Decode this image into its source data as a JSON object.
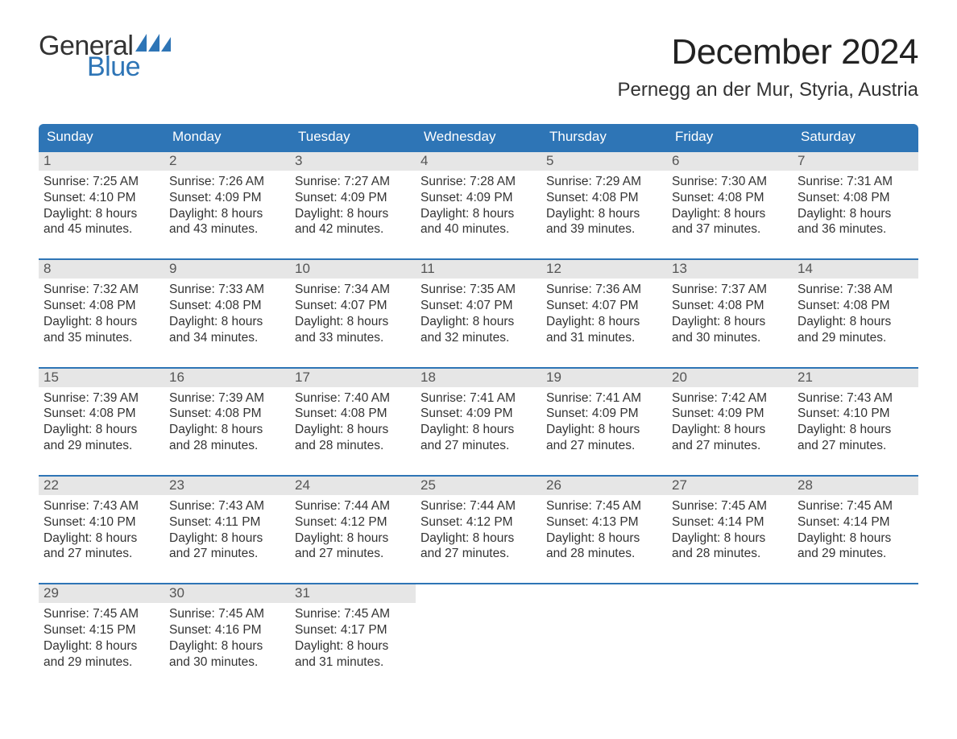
{
  "brand": {
    "word1": "General",
    "word2": "Blue",
    "word1_color": "#333333",
    "word2_color": "#2e75b6",
    "flag_color": "#2e75b6"
  },
  "header": {
    "month_title": "December 2024",
    "location": "Pernegg an der Mur, Styria, Austria"
  },
  "style": {
    "header_bg": "#2e75b6",
    "header_fg": "#ffffff",
    "daynum_bg": "#e6e6e6",
    "daynum_fg": "#555555",
    "body_fg": "#333333",
    "week_border": "#2e75b6",
    "page_bg": "#ffffff",
    "dow_fontsize": 17,
    "body_fontsize": 15.5,
    "title_fontsize": 44,
    "location_fontsize": 24
  },
  "calendar": {
    "days_of_week": [
      "Sunday",
      "Monday",
      "Tuesday",
      "Wednesday",
      "Thursday",
      "Friday",
      "Saturday"
    ],
    "weeks": [
      [
        {
          "day": "1",
          "sunrise": "Sunrise: 7:25 AM",
          "sunset": "Sunset: 4:10 PM",
          "daylight1": "Daylight: 8 hours",
          "daylight2": "and 45 minutes."
        },
        {
          "day": "2",
          "sunrise": "Sunrise: 7:26 AM",
          "sunset": "Sunset: 4:09 PM",
          "daylight1": "Daylight: 8 hours",
          "daylight2": "and 43 minutes."
        },
        {
          "day": "3",
          "sunrise": "Sunrise: 7:27 AM",
          "sunset": "Sunset: 4:09 PM",
          "daylight1": "Daylight: 8 hours",
          "daylight2": "and 42 minutes."
        },
        {
          "day": "4",
          "sunrise": "Sunrise: 7:28 AM",
          "sunset": "Sunset: 4:09 PM",
          "daylight1": "Daylight: 8 hours",
          "daylight2": "and 40 minutes."
        },
        {
          "day": "5",
          "sunrise": "Sunrise: 7:29 AM",
          "sunset": "Sunset: 4:08 PM",
          "daylight1": "Daylight: 8 hours",
          "daylight2": "and 39 minutes."
        },
        {
          "day": "6",
          "sunrise": "Sunrise: 7:30 AM",
          "sunset": "Sunset: 4:08 PM",
          "daylight1": "Daylight: 8 hours",
          "daylight2": "and 37 minutes."
        },
        {
          "day": "7",
          "sunrise": "Sunrise: 7:31 AM",
          "sunset": "Sunset: 4:08 PM",
          "daylight1": "Daylight: 8 hours",
          "daylight2": "and 36 minutes."
        }
      ],
      [
        {
          "day": "8",
          "sunrise": "Sunrise: 7:32 AM",
          "sunset": "Sunset: 4:08 PM",
          "daylight1": "Daylight: 8 hours",
          "daylight2": "and 35 minutes."
        },
        {
          "day": "9",
          "sunrise": "Sunrise: 7:33 AM",
          "sunset": "Sunset: 4:08 PM",
          "daylight1": "Daylight: 8 hours",
          "daylight2": "and 34 minutes."
        },
        {
          "day": "10",
          "sunrise": "Sunrise: 7:34 AM",
          "sunset": "Sunset: 4:07 PM",
          "daylight1": "Daylight: 8 hours",
          "daylight2": "and 33 minutes."
        },
        {
          "day": "11",
          "sunrise": "Sunrise: 7:35 AM",
          "sunset": "Sunset: 4:07 PM",
          "daylight1": "Daylight: 8 hours",
          "daylight2": "and 32 minutes."
        },
        {
          "day": "12",
          "sunrise": "Sunrise: 7:36 AM",
          "sunset": "Sunset: 4:07 PM",
          "daylight1": "Daylight: 8 hours",
          "daylight2": "and 31 minutes."
        },
        {
          "day": "13",
          "sunrise": "Sunrise: 7:37 AM",
          "sunset": "Sunset: 4:08 PM",
          "daylight1": "Daylight: 8 hours",
          "daylight2": "and 30 minutes."
        },
        {
          "day": "14",
          "sunrise": "Sunrise: 7:38 AM",
          "sunset": "Sunset: 4:08 PM",
          "daylight1": "Daylight: 8 hours",
          "daylight2": "and 29 minutes."
        }
      ],
      [
        {
          "day": "15",
          "sunrise": "Sunrise: 7:39 AM",
          "sunset": "Sunset: 4:08 PM",
          "daylight1": "Daylight: 8 hours",
          "daylight2": "and 29 minutes."
        },
        {
          "day": "16",
          "sunrise": "Sunrise: 7:39 AM",
          "sunset": "Sunset: 4:08 PM",
          "daylight1": "Daylight: 8 hours",
          "daylight2": "and 28 minutes."
        },
        {
          "day": "17",
          "sunrise": "Sunrise: 7:40 AM",
          "sunset": "Sunset: 4:08 PM",
          "daylight1": "Daylight: 8 hours",
          "daylight2": "and 28 minutes."
        },
        {
          "day": "18",
          "sunrise": "Sunrise: 7:41 AM",
          "sunset": "Sunset: 4:09 PM",
          "daylight1": "Daylight: 8 hours",
          "daylight2": "and 27 minutes."
        },
        {
          "day": "19",
          "sunrise": "Sunrise: 7:41 AM",
          "sunset": "Sunset: 4:09 PM",
          "daylight1": "Daylight: 8 hours",
          "daylight2": "and 27 minutes."
        },
        {
          "day": "20",
          "sunrise": "Sunrise: 7:42 AM",
          "sunset": "Sunset: 4:09 PM",
          "daylight1": "Daylight: 8 hours",
          "daylight2": "and 27 minutes."
        },
        {
          "day": "21",
          "sunrise": "Sunrise: 7:43 AM",
          "sunset": "Sunset: 4:10 PM",
          "daylight1": "Daylight: 8 hours",
          "daylight2": "and 27 minutes."
        }
      ],
      [
        {
          "day": "22",
          "sunrise": "Sunrise: 7:43 AM",
          "sunset": "Sunset: 4:10 PM",
          "daylight1": "Daylight: 8 hours",
          "daylight2": "and 27 minutes."
        },
        {
          "day": "23",
          "sunrise": "Sunrise: 7:43 AM",
          "sunset": "Sunset: 4:11 PM",
          "daylight1": "Daylight: 8 hours",
          "daylight2": "and 27 minutes."
        },
        {
          "day": "24",
          "sunrise": "Sunrise: 7:44 AM",
          "sunset": "Sunset: 4:12 PM",
          "daylight1": "Daylight: 8 hours",
          "daylight2": "and 27 minutes."
        },
        {
          "day": "25",
          "sunrise": "Sunrise: 7:44 AM",
          "sunset": "Sunset: 4:12 PM",
          "daylight1": "Daylight: 8 hours",
          "daylight2": "and 27 minutes."
        },
        {
          "day": "26",
          "sunrise": "Sunrise: 7:45 AM",
          "sunset": "Sunset: 4:13 PM",
          "daylight1": "Daylight: 8 hours",
          "daylight2": "and 28 minutes."
        },
        {
          "day": "27",
          "sunrise": "Sunrise: 7:45 AM",
          "sunset": "Sunset: 4:14 PM",
          "daylight1": "Daylight: 8 hours",
          "daylight2": "and 28 minutes."
        },
        {
          "day": "28",
          "sunrise": "Sunrise: 7:45 AM",
          "sunset": "Sunset: 4:14 PM",
          "daylight1": "Daylight: 8 hours",
          "daylight2": "and 29 minutes."
        }
      ],
      [
        {
          "day": "29",
          "sunrise": "Sunrise: 7:45 AM",
          "sunset": "Sunset: 4:15 PM",
          "daylight1": "Daylight: 8 hours",
          "daylight2": "and 29 minutes."
        },
        {
          "day": "30",
          "sunrise": "Sunrise: 7:45 AM",
          "sunset": "Sunset: 4:16 PM",
          "daylight1": "Daylight: 8 hours",
          "daylight2": "and 30 minutes."
        },
        {
          "day": "31",
          "sunrise": "Sunrise: 7:45 AM",
          "sunset": "Sunset: 4:17 PM",
          "daylight1": "Daylight: 8 hours",
          "daylight2": "and 31 minutes."
        },
        {
          "empty": true
        },
        {
          "empty": true
        },
        {
          "empty": true
        },
        {
          "empty": true
        }
      ]
    ]
  }
}
